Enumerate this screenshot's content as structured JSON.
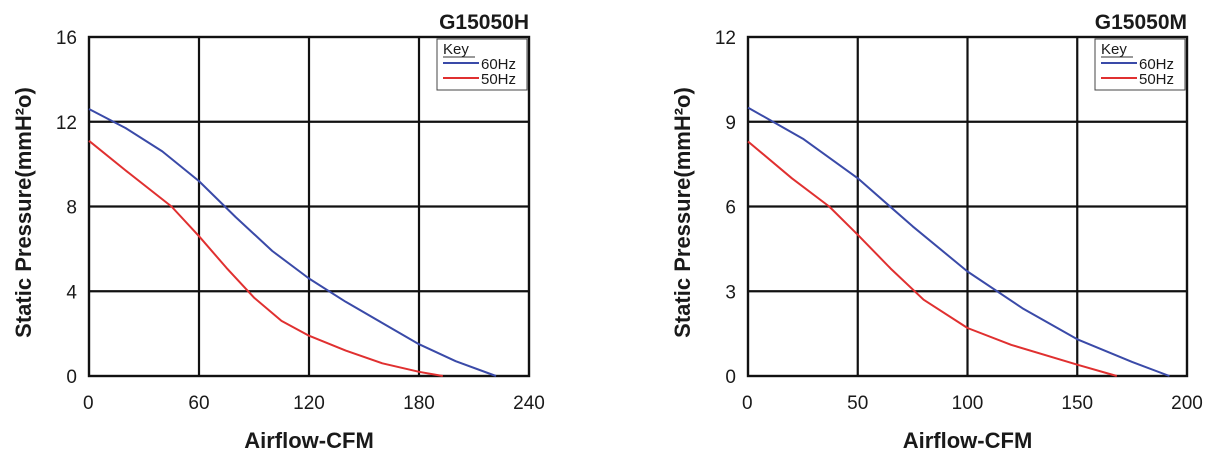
{
  "chart_data": [
    {
      "type": "line",
      "title": "G15050H",
      "xlabel": "Airflow-CFM",
      "ylabel": "Static Pressure(mmH²o)",
      "xlim": [
        0,
        240
      ],
      "ylim": [
        0,
        16
      ],
      "x_ticks": [
        "0",
        "60",
        "120",
        "180",
        "240"
      ],
      "y_ticks": [
        "0",
        "4",
        "8",
        "12",
        "16"
      ],
      "grid": true,
      "legend": {
        "title": "Key",
        "placement": "top-right"
      },
      "series": [
        {
          "name": "60Hz",
          "color": "#3a4aa8",
          "x": [
            0,
            20,
            40,
            60,
            80,
            100,
            120,
            140,
            160,
            180,
            200,
            222
          ],
          "y": [
            12.6,
            11.7,
            10.6,
            9.2,
            7.5,
            5.9,
            4.6,
            3.5,
            2.5,
            1.5,
            0.7,
            0
          ]
        },
        {
          "name": "50Hz",
          "color": "#e03030",
          "x": [
            0,
            20,
            45,
            60,
            75,
            90,
            105,
            120,
            140,
            160,
            180,
            193
          ],
          "y": [
            11.1,
            9.7,
            8.0,
            6.6,
            5.1,
            3.7,
            2.6,
            1.9,
            1.2,
            0.6,
            0.2,
            0
          ]
        }
      ]
    },
    {
      "type": "line",
      "title": "G15050M",
      "xlabel": "Airflow-CFM",
      "ylabel": "Static Pressure(mmH²o)",
      "xlim": [
        0,
        200
      ],
      "ylim": [
        0,
        12
      ],
      "x_ticks": [
        "0",
        "50",
        "100",
        "150",
        "200"
      ],
      "y_ticks": [
        "0",
        "3",
        "6",
        "9",
        "12"
      ],
      "grid": true,
      "legend": {
        "title": "Key",
        "placement": "top-right"
      },
      "series": [
        {
          "name": "60Hz",
          "color": "#3a4aa8",
          "x": [
            0,
            25,
            50,
            75,
            100,
            125,
            150,
            175,
            192
          ],
          "y": [
            9.5,
            8.4,
            7.0,
            5.3,
            3.7,
            2.4,
            1.3,
            0.5,
            0
          ]
        },
        {
          "name": "50Hz",
          "color": "#e03030",
          "x": [
            0,
            20,
            37,
            50,
            65,
            80,
            100,
            120,
            150,
            168
          ],
          "y": [
            8.3,
            7.0,
            6.0,
            5.0,
            3.8,
            2.7,
            1.7,
            1.1,
            0.4,
            0
          ]
        }
      ]
    }
  ]
}
